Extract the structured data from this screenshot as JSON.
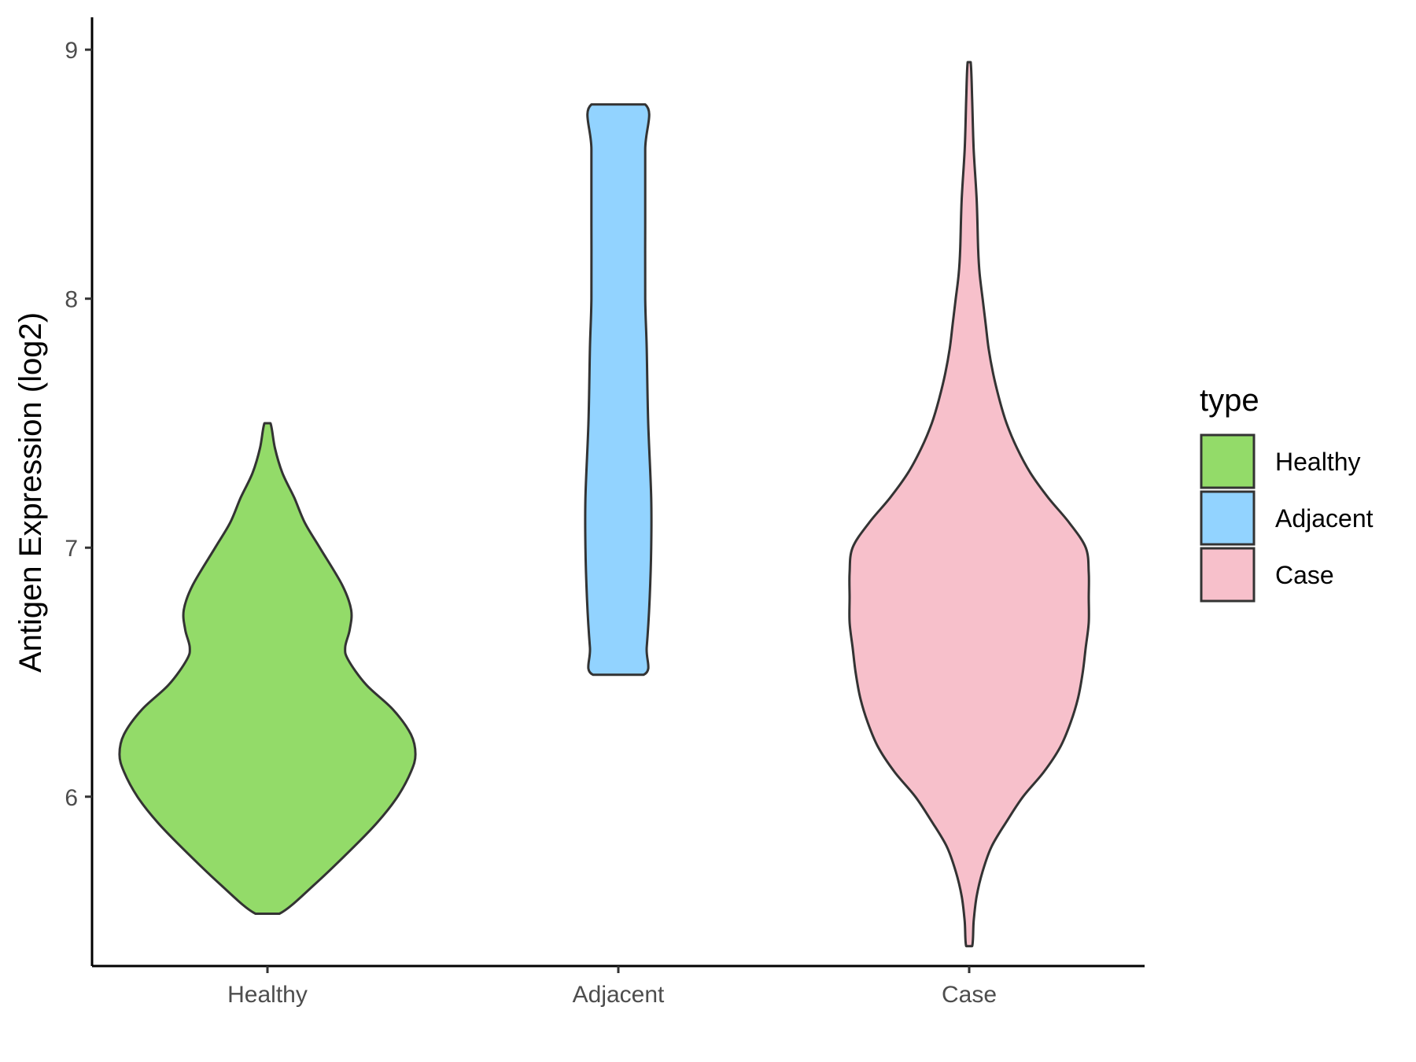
{
  "chart_data": {
    "type": "violin",
    "ylabel": "Antigen Expression (log2)",
    "xlabel": "",
    "categories": [
      "Healthy",
      "Adjacent",
      "Case"
    ],
    "ylim": [
      5.32,
      9.13
    ],
    "yticks": [
      6,
      7,
      8,
      9
    ],
    "grid": false,
    "legend": {
      "title": "type",
      "position": "right",
      "entries": [
        "Healthy",
        "Adjacent",
        "Case"
      ]
    },
    "series": [
      {
        "name": "Healthy",
        "color": "#93DB69",
        "min": 5.53,
        "max": 7.5,
        "density_profile": [
          [
            5.53,
            0.08
          ],
          [
            5.65,
            0.32
          ],
          [
            5.8,
            0.58
          ],
          [
            5.9,
            0.74
          ],
          [
            6.0,
            0.87
          ],
          [
            6.1,
            0.96
          ],
          [
            6.17,
            0.99
          ],
          [
            6.25,
            0.96
          ],
          [
            6.35,
            0.84
          ],
          [
            6.45,
            0.66
          ],
          [
            6.55,
            0.54
          ],
          [
            6.6,
            0.52
          ],
          [
            6.67,
            0.55
          ],
          [
            6.75,
            0.56
          ],
          [
            6.85,
            0.5
          ],
          [
            7.0,
            0.35
          ],
          [
            7.1,
            0.25
          ],
          [
            7.2,
            0.18
          ],
          [
            7.3,
            0.1
          ],
          [
            7.4,
            0.05
          ],
          [
            7.5,
            0.02
          ]
        ]
      },
      {
        "name": "Adjacent",
        "color": "#92D3FF",
        "min": 6.49,
        "max": 8.78,
        "density_profile": [
          [
            6.49,
            0.17
          ],
          [
            6.6,
            0.19
          ],
          [
            6.8,
            0.21
          ],
          [
            7.0,
            0.22
          ],
          [
            7.2,
            0.22
          ],
          [
            7.5,
            0.2
          ],
          [
            7.8,
            0.19
          ],
          [
            8.0,
            0.18
          ],
          [
            8.3,
            0.18
          ],
          [
            8.6,
            0.18
          ],
          [
            8.78,
            0.18
          ]
        ]
      },
      {
        "name": "Case",
        "color": "#F7C0CB",
        "min": 5.4,
        "max": 8.95,
        "density_profile": [
          [
            5.4,
            0.02
          ],
          [
            5.5,
            0.03
          ],
          [
            5.6,
            0.05
          ],
          [
            5.7,
            0.09
          ],
          [
            5.8,
            0.15
          ],
          [
            5.9,
            0.25
          ],
          [
            6.0,
            0.36
          ],
          [
            6.1,
            0.5
          ],
          [
            6.2,
            0.61
          ],
          [
            6.3,
            0.68
          ],
          [
            6.4,
            0.73
          ],
          [
            6.5,
            0.76
          ],
          [
            6.6,
            0.78
          ],
          [
            6.7,
            0.8
          ],
          [
            6.8,
            0.8
          ],
          [
            6.9,
            0.8
          ],
          [
            7.0,
            0.78
          ],
          [
            7.1,
            0.67
          ],
          [
            7.2,
            0.53
          ],
          [
            7.3,
            0.41
          ],
          [
            7.4,
            0.32
          ],
          [
            7.5,
            0.25
          ],
          [
            7.6,
            0.2
          ],
          [
            7.7,
            0.16
          ],
          [
            7.8,
            0.13
          ],
          [
            7.9,
            0.11
          ],
          [
            8.0,
            0.09
          ],
          [
            8.1,
            0.07
          ],
          [
            8.2,
            0.06
          ],
          [
            8.4,
            0.05
          ],
          [
            8.6,
            0.03
          ],
          [
            8.8,
            0.02
          ],
          [
            8.95,
            0.01
          ]
        ]
      }
    ]
  }
}
